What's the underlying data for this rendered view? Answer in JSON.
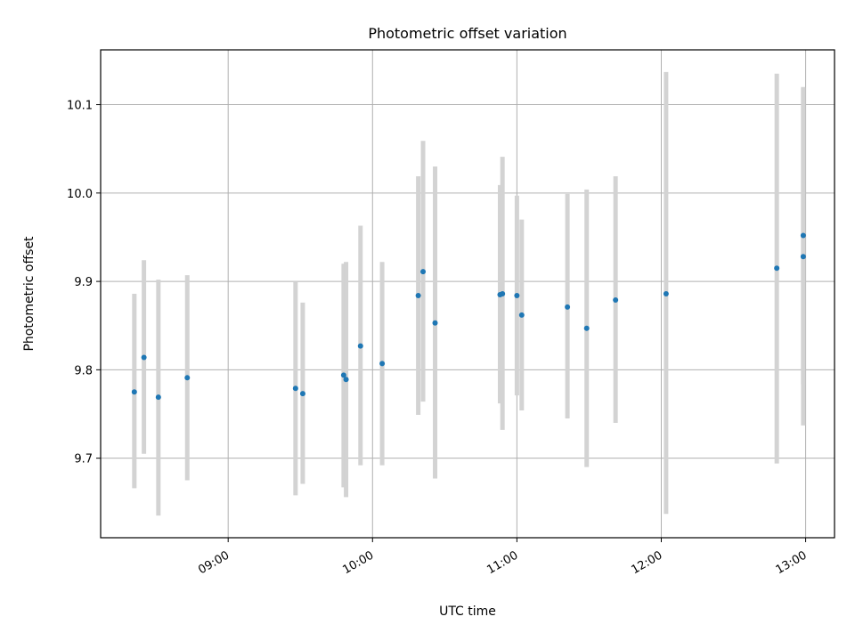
{
  "chart_data": {
    "type": "scatter",
    "title": "Photometric offset variation",
    "xlabel": "UTC time",
    "ylabel": "Photometric offset",
    "x_axis_kind": "time",
    "xlim": [
      "08:07",
      "13:12"
    ],
    "ylim": [
      9.61,
      10.162
    ],
    "grid": true,
    "x_ticks": [
      {
        "time": "09:00",
        "label": "09:00"
      },
      {
        "time": "10:00",
        "label": "10:00"
      },
      {
        "time": "11:00",
        "label": "11:00"
      },
      {
        "time": "12:00",
        "label": "12:00"
      },
      {
        "time": "13:00",
        "label": "13:00"
      }
    ],
    "y_ticks": [
      {
        "value": 9.7,
        "label": "9.7"
      },
      {
        "value": 9.8,
        "label": "9.8"
      },
      {
        "value": 9.9,
        "label": "9.9"
      },
      {
        "value": 10.0,
        "label": "10.0"
      },
      {
        "value": 10.1,
        "label": "10.1"
      }
    ],
    "marker_color": "#1f77b4",
    "errorbar_color": "#d3d3d3",
    "points": [
      {
        "time": "08:21",
        "y": 9.775,
        "lo": 9.666,
        "hi": 9.886
      },
      {
        "time": "08:25",
        "y": 9.814,
        "lo": 9.705,
        "hi": 9.924
      },
      {
        "time": "08:31",
        "y": 9.769,
        "lo": 9.635,
        "hi": 9.902
      },
      {
        "time": "08:43",
        "y": 9.791,
        "lo": 9.675,
        "hi": 9.907
      },
      {
        "time": "09:28",
        "y": 9.779,
        "lo": 9.658,
        "hi": 9.9
      },
      {
        "time": "09:31",
        "y": 9.773,
        "lo": 9.671,
        "hi": 9.876
      },
      {
        "time": "09:48",
        "y": 9.794,
        "lo": 9.667,
        "hi": 9.92
      },
      {
        "time": "09:49",
        "y": 9.789,
        "lo": 9.656,
        "hi": 9.922
      },
      {
        "time": "09:55",
        "y": 9.827,
        "lo": 9.692,
        "hi": 9.963
      },
      {
        "time": "10:04",
        "y": 9.807,
        "lo": 9.692,
        "hi": 9.922
      },
      {
        "time": "10:19",
        "y": 9.884,
        "lo": 9.749,
        "hi": 10.019
      },
      {
        "time": "10:21",
        "y": 9.911,
        "lo": 9.764,
        "hi": 10.059
      },
      {
        "time": "10:26",
        "y": 9.853,
        "lo": 9.677,
        "hi": 10.03
      },
      {
        "time": "10:53",
        "y": 9.885,
        "lo": 9.762,
        "hi": 10.009
      },
      {
        "time": "10:54",
        "y": 9.886,
        "lo": 9.732,
        "hi": 10.041
      },
      {
        "time": "11:00",
        "y": 9.884,
        "lo": 9.771,
        "hi": 9.997
      },
      {
        "time": "11:02",
        "y": 9.862,
        "lo": 9.754,
        "hi": 9.97
      },
      {
        "time": "11:21",
        "y": 9.871,
        "lo": 9.745,
        "hi": 9.999
      },
      {
        "time": "11:29",
        "y": 9.847,
        "lo": 9.69,
        "hi": 10.004
      },
      {
        "time": "11:41",
        "y": 9.879,
        "lo": 9.74,
        "hi": 10.019
      },
      {
        "time": "12:02",
        "y": 9.886,
        "lo": 9.637,
        "hi": 10.137
      },
      {
        "time": "12:48",
        "y": 9.915,
        "lo": 9.694,
        "hi": 10.135
      },
      {
        "time": "12:59",
        "y": 9.952,
        "lo": 9.784,
        "hi": 10.12
      },
      {
        "time": "12:59",
        "y": 9.928,
        "lo": 9.737,
        "hi": 10.119
      }
    ]
  }
}
